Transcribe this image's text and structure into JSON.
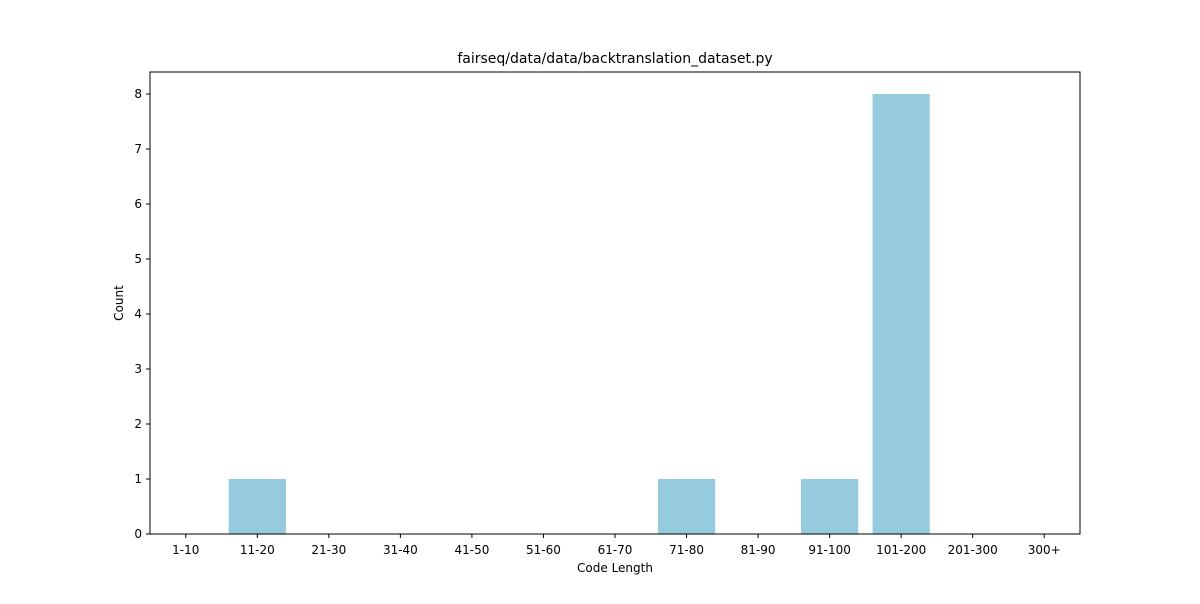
{
  "chart_data": {
    "type": "bar",
    "title": "fairseq/data/data/backtranslation_dataset.py",
    "xlabel": "Code Length",
    "ylabel": "Count",
    "categories": [
      "1-10",
      "11-20",
      "21-30",
      "31-40",
      "41-50",
      "51-60",
      "61-70",
      "71-80",
      "81-90",
      "91-100",
      "101-200",
      "201-300",
      "300+"
    ],
    "values": [
      0,
      1,
      0,
      0,
      0,
      0,
      0,
      1,
      0,
      1,
      8,
      0,
      0
    ],
    "ylim": [
      0,
      8.4
    ],
    "yticks": [
      0,
      1,
      2,
      3,
      4,
      5,
      6,
      7,
      8
    ],
    "grid": false,
    "legend": "none",
    "bar_color": "#96cadd"
  }
}
